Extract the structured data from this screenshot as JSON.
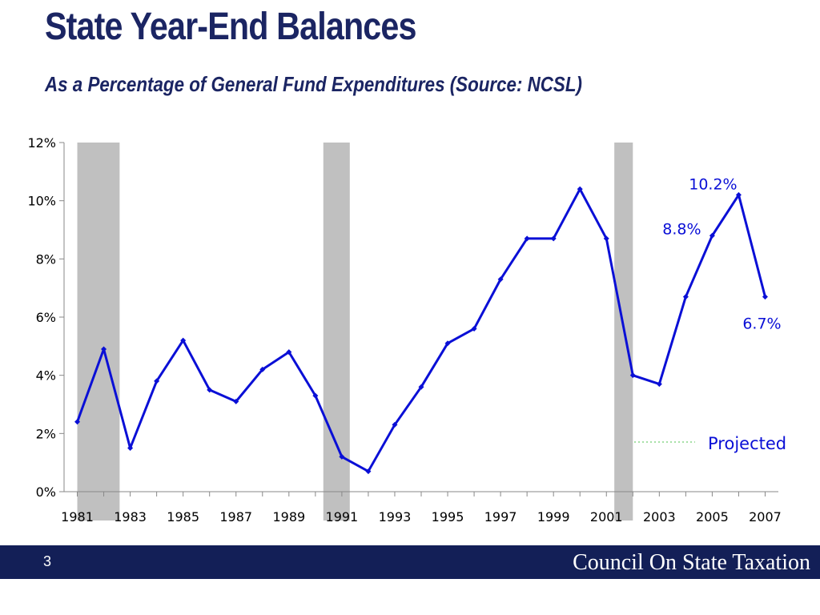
{
  "slide": {
    "title": "State Year-End Balances",
    "subtitle": "As a Percentage of General Fund Expenditures (Source: NCSL)",
    "page_number": "3",
    "organization": "Council On State Taxation",
    "footer_color": "#131f57",
    "title_color": "#1b2563"
  },
  "chart_data": {
    "type": "line",
    "title": "",
    "xlabel": "",
    "ylabel": "",
    "x": [
      1981,
      1982,
      1983,
      1984,
      1985,
      1986,
      1987,
      1988,
      1989,
      1990,
      1991,
      1992,
      1993,
      1994,
      1995,
      1996,
      1997,
      1998,
      1999,
      2000,
      2001,
      2002,
      2003,
      2004,
      2005,
      2006,
      2007
    ],
    "series": [
      {
        "values": [
          2.4,
          4.9,
          1.5,
          3.8,
          5.2,
          3.5,
          3.1,
          4.2,
          4.8,
          3.3,
          1.2,
          0.7,
          2.3,
          3.6,
          5.1,
          5.6,
          7.3,
          8.7,
          8.7,
          10.4,
          8.7,
          4.0,
          3.7,
          6.7,
          8.8,
          10.2,
          6.7
        ],
        "color": "#0a0fd6"
      }
    ],
    "ylim": [
      0,
      12
    ],
    "yticks": [
      "0%",
      "2%",
      "4%",
      "6%",
      "8%",
      "10%",
      "12%"
    ],
    "xticks": [
      "1981",
      "1983",
      "1985",
      "1987",
      "1989",
      "1991",
      "1993",
      "1995",
      "1997",
      "1999",
      "2001",
      "2003",
      "2005",
      "2007"
    ],
    "recession_bands": [
      {
        "start": 1981.0,
        "end": 1982.6
      },
      {
        "start": 1990.3,
        "end": 1991.3
      },
      {
        "start": 2001.3,
        "end": 2002.0
      }
    ],
    "recession_color": "#c0c0c0",
    "annotations": [
      {
        "text": "10.2%",
        "x": 2006,
        "y": 10.2
      },
      {
        "text": "8.8%",
        "x": 2005,
        "y": 8.8
      },
      {
        "text": "6.7%",
        "x": 2007,
        "y": 6.7
      }
    ],
    "projected_label": "Projected",
    "projected_color": "#a6e0a6",
    "grid": false
  }
}
